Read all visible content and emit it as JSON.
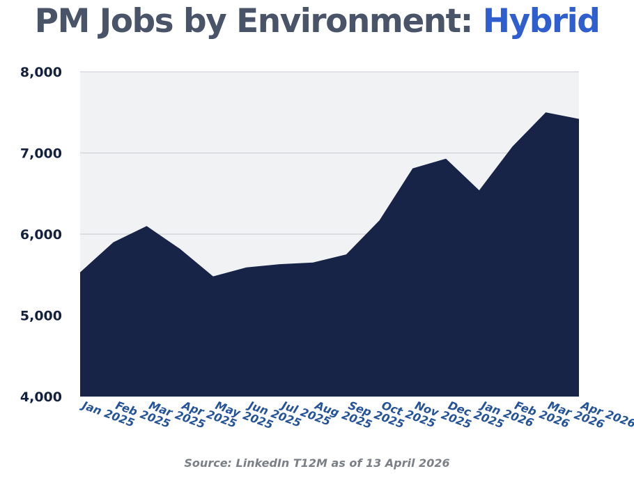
{
  "title": {
    "prefix": "PM Jobs by Environment: ",
    "highlight": "Hybrid"
  },
  "source": "Source: LinkedIn T12M as of 13 April 2026",
  "colors": {
    "title": "#4a5468",
    "highlight": "#2f5fcf",
    "area_fill": "#172447",
    "plot_bg": "#f1f2f4",
    "grid": "#c9cbd0",
    "ytick": "#14213d",
    "xtick": "#24539a"
  },
  "chart_data": {
    "type": "area",
    "categories": [
      "Jan 2025",
      "Feb 2025",
      "Mar 2025",
      "Apr 2025",
      "May 2025",
      "Jun 2025",
      "Jul 2025",
      "Aug 2025",
      "Sep 2025",
      "Oct 2025",
      "Nov 2025",
      "Dec 2025",
      "Jan 2026",
      "Feb 2026",
      "Mar 2026",
      "Apr 2026"
    ],
    "values": [
      5530,
      5900,
      6100,
      5820,
      5480,
      5590,
      5630,
      5650,
      5750,
      6170,
      6810,
      6930,
      6540,
      7080,
      7500,
      7420
    ],
    "ylim": [
      4000,
      8000
    ],
    "yticks": [
      4000,
      5000,
      6000,
      7000,
      8000
    ],
    "ytick_labels": [
      "4,000",
      "5,000",
      "6,000",
      "7,000",
      "8,000"
    ],
    "grid": true
  }
}
